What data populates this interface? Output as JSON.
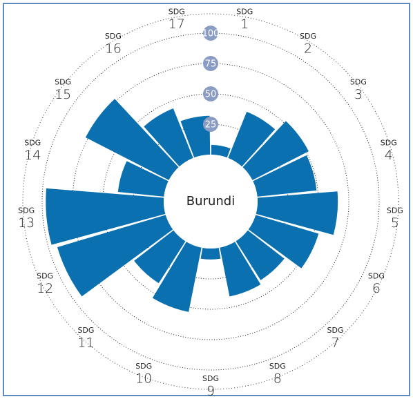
{
  "chart_data": {
    "type": "polar_bar",
    "center_label": "Burundi",
    "category_prefix": "SDG",
    "categories": [
      "1",
      "2",
      "3",
      "4",
      "5",
      "6",
      "7",
      "8",
      "9",
      "10",
      "11",
      "12",
      "13",
      "14",
      "15",
      "16",
      "17"
    ],
    "values": [
      8,
      41,
      52,
      49,
      66,
      54,
      38,
      41,
      9,
      54,
      41,
      93,
      97,
      38,
      77,
      44,
      32
    ],
    "color": "#0a70b0",
    "ylim": [
      0,
      100
    ],
    "yticks": [
      25,
      50,
      75,
      100
    ],
    "grid": true
  }
}
